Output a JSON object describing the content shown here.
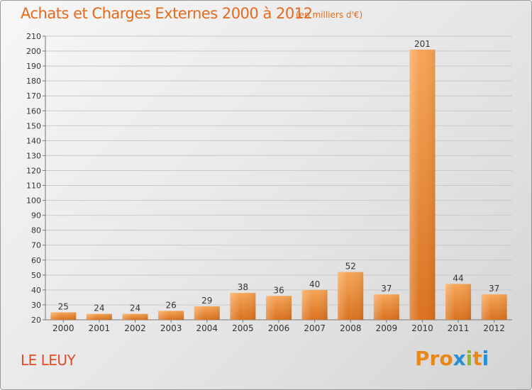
{
  "header": {
    "title": "Achats et Charges Externes 2000 à 2012",
    "unit": "(en milliers d'€)"
  },
  "footer": {
    "city": "LE LEUY",
    "logo": [
      "P",
      "r",
      "o",
      "x",
      "i",
      "t",
      "i"
    ]
  },
  "colors": {
    "bar_light": "#f7a556",
    "bar_dark": "#d9721f",
    "title": "#e46a1e",
    "city": "#e24a2a",
    "grid": "#c8c8c8",
    "logo": [
      "#e8871a",
      "#e8871a",
      "#e8871a",
      "#2a8fd0",
      "#8cbb2a",
      "#e8871a",
      "#2a8fd0"
    ]
  },
  "chart_data": {
    "type": "bar",
    "categories": [
      "2000",
      "2001",
      "2002",
      "2003",
      "2004",
      "2005",
      "2006",
      "2007",
      "2008",
      "2009",
      "2010",
      "2011",
      "2012"
    ],
    "values": [
      25,
      24,
      24,
      26,
      29,
      38,
      36,
      40,
      52,
      37,
      201,
      44,
      37
    ],
    "ylim": [
      20,
      210
    ],
    "yticks": [
      20,
      30,
      40,
      50,
      60,
      70,
      80,
      90,
      100,
      110,
      120,
      130,
      140,
      150,
      160,
      170,
      180,
      190,
      200,
      210
    ],
    "grid": true
  }
}
